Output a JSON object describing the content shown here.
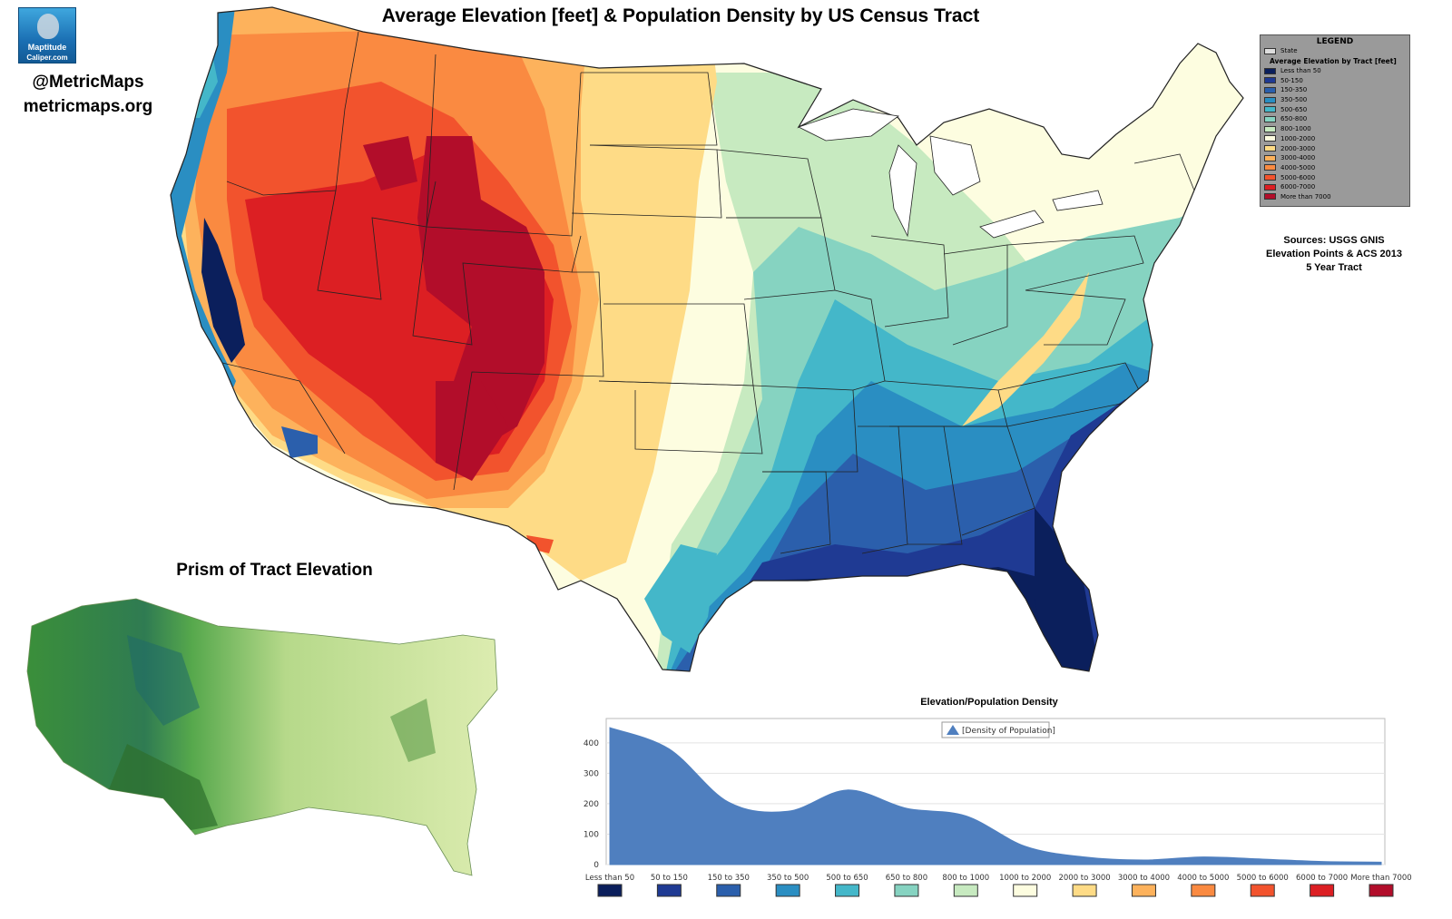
{
  "title": "Average Elevation [feet] & Population Density by US Census Tract",
  "logo": {
    "line1": "Maptitude",
    "line2": "Caliper.com"
  },
  "handle": "@MetricMaps",
  "website": "metricmaps.org",
  "legend": {
    "title": "LEGEND",
    "state_label": "State",
    "subtitle": "Average Elevation by Tract [feet]",
    "classes": [
      {
        "label": "Less than 50",
        "color": "#0b1f5c"
      },
      {
        "label": "50-150",
        "color": "#1f3a93"
      },
      {
        "label": "150-350",
        "color": "#2b5fac"
      },
      {
        "label": "350-500",
        "color": "#2a8ec2"
      },
      {
        "label": "500-650",
        "color": "#44b7c9"
      },
      {
        "label": "650-800",
        "color": "#86d3c1"
      },
      {
        "label": "800-1000",
        "color": "#c7eac0"
      },
      {
        "label": "1000-2000",
        "color": "#fdfde0"
      },
      {
        "label": "2000-3000",
        "color": "#fedb86"
      },
      {
        "label": "3000-4000",
        "color": "#fdb25c"
      },
      {
        "label": "4000-5000",
        "color": "#fa8a41"
      },
      {
        "label": "5000-6000",
        "color": "#f2532d"
      },
      {
        "label": "6000-7000",
        "color": "#dc1f23"
      },
      {
        "label": "More than 7000",
        "color": "#b20d2a"
      }
    ]
  },
  "sources": {
    "line1": "Sources:  USGS GNIS",
    "line2": "Elevation Points & ACS 2013",
    "line3": "5 Year Tract"
  },
  "prism_title": "Prism of Tract Elevation",
  "chart_title": "Elevation/Population Density",
  "chart_data": {
    "type": "area",
    "title": "Elevation/Population Density",
    "legend_position": "top-center",
    "series": [
      {
        "name": "[Density of Population]",
        "color": "#4f7fbf",
        "values": [
          450,
          380,
          205,
          175,
          245,
          185,
          160,
          60,
          25,
          15,
          25,
          18,
          10,
          8
        ]
      }
    ],
    "categories": [
      "Less than 50",
      "50 to 150",
      "150 to 350",
      "350 to 500",
      "500 to 650",
      "650 to 800",
      "800 to 1000",
      "1000 to 2000",
      "2000 to 3000",
      "3000 to 4000",
      "4000 to 5000",
      "5000 to 6000",
      "6000 to 7000",
      "More than 7000"
    ],
    "category_colors": [
      "#0b1f5c",
      "#1f3a93",
      "#2b5fac",
      "#2a8ec2",
      "#44b7c9",
      "#86d3c1",
      "#c7eac0",
      "#fdfde0",
      "#fedb86",
      "#fdb25c",
      "#fa8a41",
      "#f2532d",
      "#dc1f23",
      "#b20d2a"
    ],
    "yticks": [
      0,
      100,
      200,
      300,
      400
    ],
    "ylim": [
      0,
      480
    ],
    "grid": true
  }
}
